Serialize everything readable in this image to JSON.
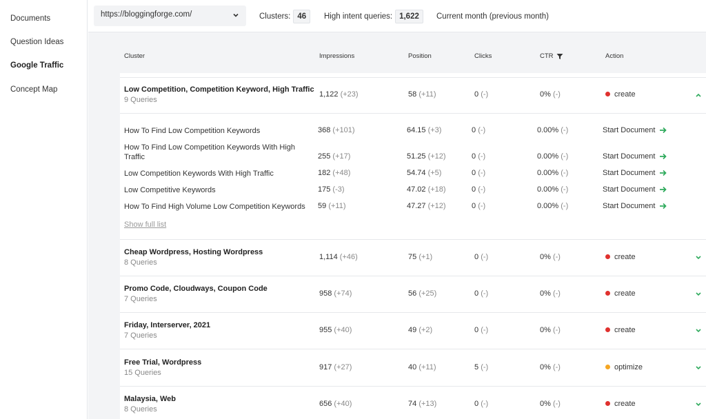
{
  "sidebar": {
    "items": [
      {
        "label": "Documents"
      },
      {
        "label": "Question Ideas"
      },
      {
        "label": "Google Traffic"
      },
      {
        "label": "Concept Map"
      }
    ]
  },
  "toolbar": {
    "site_url": "https://bloggingforge.com/",
    "clusters_label": "Clusters:",
    "clusters_count": "46",
    "high_intent_label": "High intent queries:",
    "high_intent_count": "1,622",
    "period_label": "Current month (previous month)"
  },
  "table": {
    "headers": {
      "cluster": "Cluster",
      "impressions": "Impressions",
      "position": "Position",
      "clicks": "Clicks",
      "ctr": "CTR",
      "action": "Action"
    },
    "expanded": {
      "title": "Low Competition, Competition Keyword, High Traffic",
      "queries": "9 Queries",
      "impressions": "1,122",
      "impressions_delta": "(+23)",
      "position": "58",
      "position_delta": "(+11)",
      "clicks": "0",
      "clicks_delta": "(-)",
      "ctr": "0%",
      "ctr_delta": "(-)",
      "action": "create",
      "action_color": "#e0312e",
      "sub_rows": [
        {
          "query": "How To Find Low Competition Keywords",
          "impressions": "368",
          "impressions_delta": "(+101)",
          "position": "64.15",
          "position_delta": "(+3)",
          "clicks": "0",
          "clicks_delta": "(-)",
          "ctr": "0.00%",
          "ctr_delta": "(-)",
          "action": "Start Document"
        },
        {
          "query": "How To Find Low Competition Keywords With High Traffic",
          "impressions": "255",
          "impressions_delta": "(+17)",
          "position": "51.25",
          "position_delta": "(+12)",
          "clicks": "0",
          "clicks_delta": "(-)",
          "ctr": "0.00%",
          "ctr_delta": "(-)",
          "action": "Start Document"
        },
        {
          "query": "Low Competition Keywords With High Traffic",
          "impressions": "182",
          "impressions_delta": "(+48)",
          "position": "54.74",
          "position_delta": "(+5)",
          "clicks": "0",
          "clicks_delta": "(-)",
          "ctr": "0.00%",
          "ctr_delta": "(-)",
          "action": "Start Document"
        },
        {
          "query": "Low Competitive Keywords",
          "impressions": "175",
          "impressions_delta": "(-3)",
          "position": "47.02",
          "position_delta": "(+18)",
          "clicks": "0",
          "clicks_delta": "(-)",
          "ctr": "0.00%",
          "ctr_delta": "(-)",
          "action": "Start Document"
        },
        {
          "query": "How To Find High Volume Low Competition Keywords",
          "impressions": "59",
          "impressions_delta": "(+11)",
          "position": "47.27",
          "position_delta": "(+12)",
          "clicks": "0",
          "clicks_delta": "(-)",
          "ctr": "0.00%",
          "ctr_delta": "(-)",
          "action": "Start Document"
        }
      ],
      "show_full_list": "Show full list"
    },
    "clusters": [
      {
        "title": "Cheap Wordpress, Hosting Wordpress",
        "queries": "8 Queries",
        "impressions": "1,114",
        "impressions_delta": "(+46)",
        "position": "75",
        "position_delta": "(+1)",
        "clicks": "0",
        "clicks_delta": "(-)",
        "ctr": "0%",
        "ctr_delta": "(-)",
        "action": "create",
        "action_color": "#e0312e"
      },
      {
        "title": "Promo Code, Cloudways, Coupon Code",
        "queries": "7 Queries",
        "impressions": "958",
        "impressions_delta": "(+74)",
        "position": "56",
        "position_delta": "(+25)",
        "clicks": "0",
        "clicks_delta": "(-)",
        "ctr": "0%",
        "ctr_delta": "(-)",
        "action": "create",
        "action_color": "#e0312e"
      },
      {
        "title": "Friday, Interserver, 2021",
        "queries": "7 Queries",
        "impressions": "955",
        "impressions_delta": "(+40)",
        "position": "49",
        "position_delta": "(+2)",
        "clicks": "0",
        "clicks_delta": "(-)",
        "ctr": "0%",
        "ctr_delta": "(-)",
        "action": "create",
        "action_color": "#e0312e"
      },
      {
        "title": "Free Trial, Wordpress",
        "queries": "15 Queries",
        "impressions": "917",
        "impressions_delta": "(+27)",
        "position": "40",
        "position_delta": "(+11)",
        "clicks": "5",
        "clicks_delta": "(-)",
        "ctr": "0%",
        "ctr_delta": "(-)",
        "action": "optimize",
        "action_color": "#f5a623"
      },
      {
        "title": "Malaysia, Web",
        "queries": "8 Queries",
        "impressions": "656",
        "impressions_delta": "(+40)",
        "position": "74",
        "position_delta": "(+13)",
        "clicks": "0",
        "clicks_delta": "(-)",
        "ctr": "0%",
        "ctr_delta": "(-)",
        "action": "create",
        "action_color": "#e0312e"
      }
    ]
  },
  "icons": {
    "dropdown": "chevron-down-icon",
    "filter": "filter-icon",
    "collapse": "chevron-up-icon",
    "expand": "chevron-down-icon",
    "start": "arrow-right-icon"
  },
  "colors": {
    "accent_green": "#2eaa5c",
    "create_red": "#e0312e",
    "optimize_orange": "#f5a623"
  }
}
